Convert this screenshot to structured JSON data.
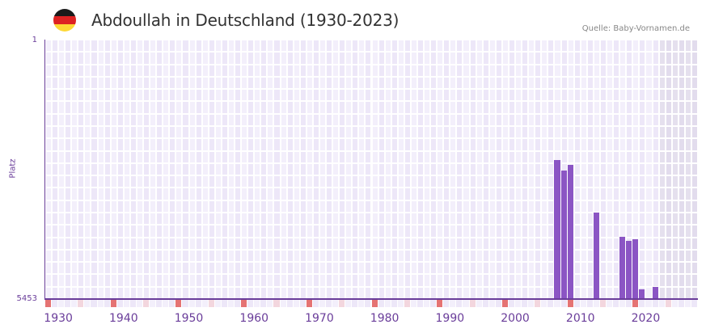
{
  "header": {
    "title": "Abdoullah in Deutschland (1930-2023)",
    "source": "Quelle: Baby-Vornamen.de",
    "flag_colors": [
      "#1a1a1a",
      "#dd2222",
      "#fdd835"
    ]
  },
  "chart_data": {
    "type": "bar",
    "title": "Abdoullah in Deutschland (1930-2023)",
    "xlabel": "",
    "ylabel": "Platz",
    "y_inverted": true,
    "ylim": [
      1,
      5453
    ],
    "y_ticks": [
      "1",
      "5453"
    ],
    "x_ticks": [
      "1930",
      "1940",
      "1950",
      "1960",
      "1970",
      "1980",
      "1990",
      "2000",
      "2010",
      "2020"
    ],
    "x_range": [
      1928,
      2028
    ],
    "grid": true,
    "shaded_future_from": 2022,
    "categories": [
      2006,
      2007,
      2008,
      2012,
      2016,
      2017,
      2018,
      2019,
      2021
    ],
    "series": [
      {
        "name": "Platz",
        "values": [
          2540,
          2760,
          2630,
          3630,
          4150,
          4230,
          4200,
          5250,
          5200
        ]
      }
    ],
    "colors": {
      "bar": "#8b55c4",
      "axis": "#6a3d9a",
      "decade_marker": "#e57373",
      "half_decade_marker": "#f3d6de"
    }
  }
}
